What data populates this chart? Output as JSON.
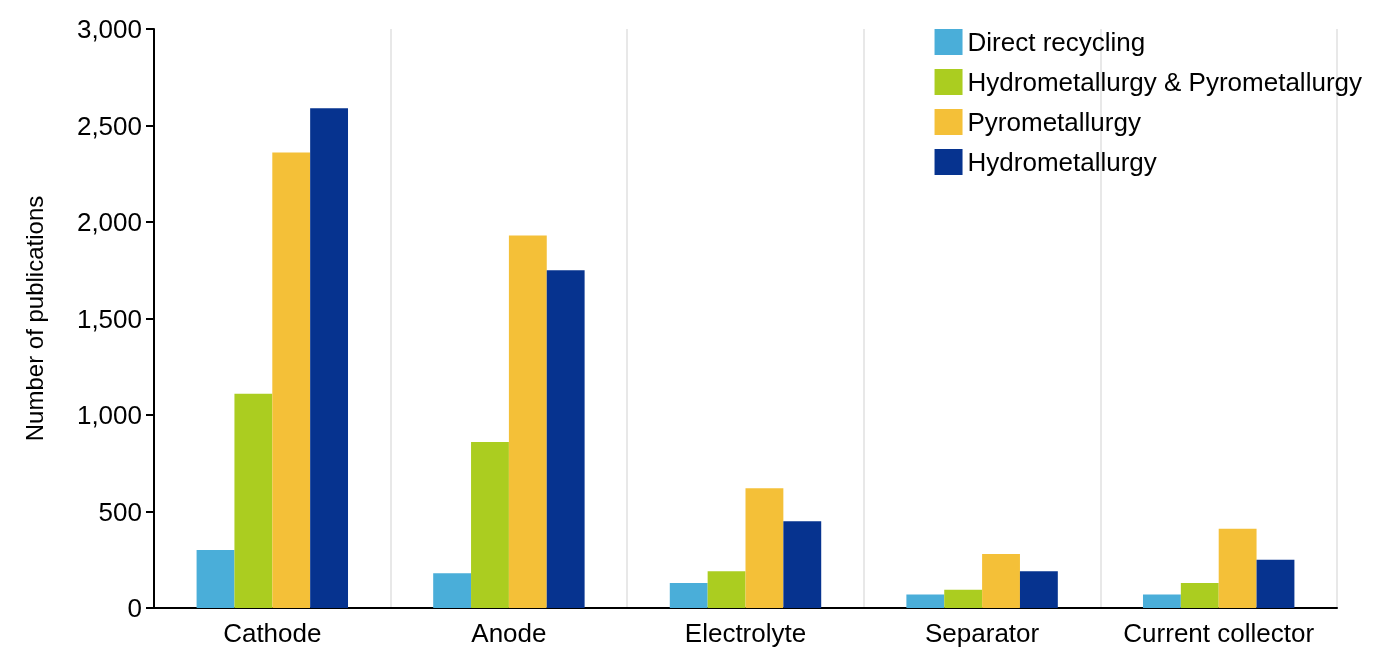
{
  "chart_data": {
    "type": "bar",
    "categories": [
      "Cathode",
      "Anode",
      "Electrolyte",
      "Separator",
      "Current collector"
    ],
    "series": [
      {
        "name": "Direct recycling",
        "color": "#4aaed9",
        "values": [
          300,
          180,
          130,
          70,
          70
        ]
      },
      {
        "name": "Hydrometallurgy & Pyrometallurgy",
        "color": "#abcd20",
        "values": [
          1110,
          860,
          190,
          95,
          130
        ]
      },
      {
        "name": "Pyrometallurgy",
        "color": "#f4c038",
        "values": [
          2360,
          1930,
          620,
          280,
          410
        ]
      },
      {
        "name": "Hydrometallurgy",
        "color": "#06338f",
        "values": [
          2590,
          1750,
          450,
          190,
          250
        ]
      }
    ],
    "ylabel": "Number of publications",
    "ylim": [
      0,
      3000
    ],
    "yticks": [
      0,
      500,
      {
        "value": 1000,
        "label": "1,000"
      },
      {
        "value": 1500,
        "label": "1,500"
      },
      {
        "value": 2000,
        "label": "2,000"
      },
      {
        "value": 2500,
        "label": "2,500"
      },
      {
        "value": 3000,
        "label": "3,000"
      }
    ],
    "grid": "x",
    "legend": "top right"
  }
}
